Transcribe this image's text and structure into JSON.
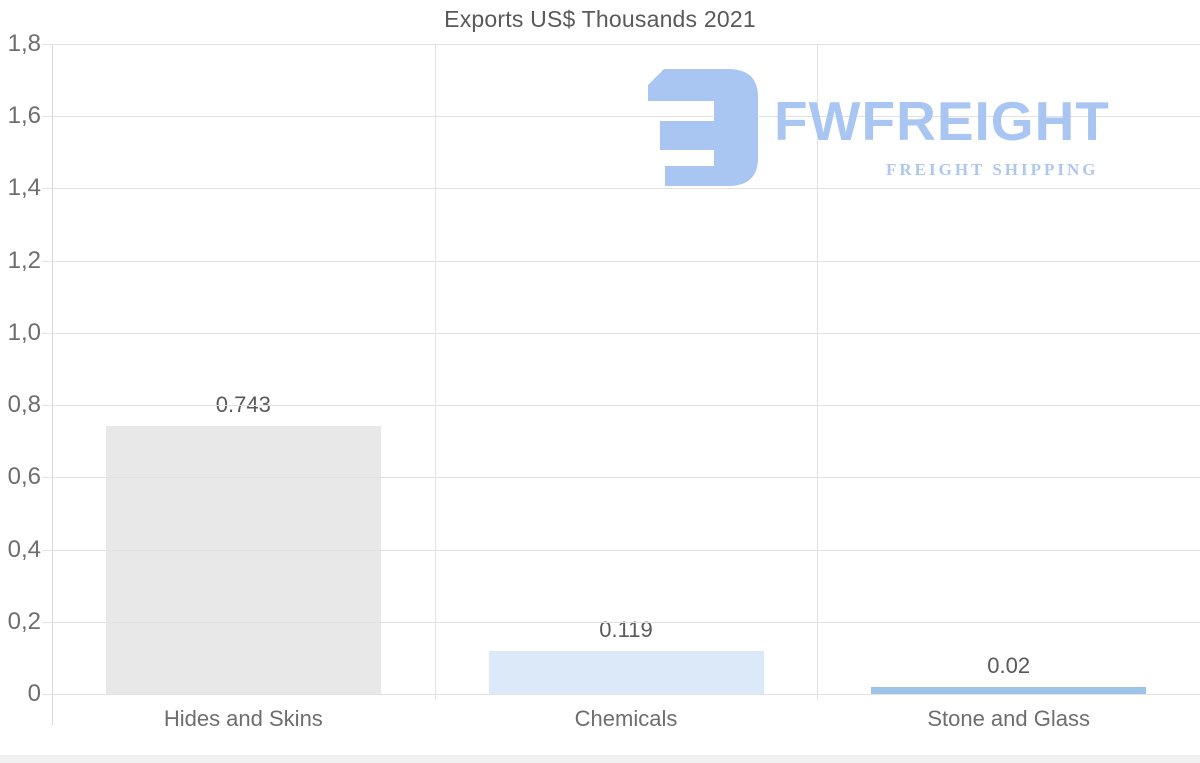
{
  "title": "Exports US$ Thousands 2021",
  "logo": {
    "name": "FWFREIGHT",
    "tagline": "FREIGHT SHIPPING",
    "color": "#a9c5f1"
  },
  "chart_data": {
    "type": "bar",
    "title": "Exports US$ Thousands 2021",
    "categories": [
      "Hides and Skins",
      "Chemicals",
      "Stone and Glass"
    ],
    "values": [
      0.743,
      0.119,
      0.02
    ],
    "value_labels": [
      "0.743",
      "0.119",
      "0.02"
    ],
    "bar_colors": [
      "#e8e8e8",
      "#dbe9f8",
      "#9dc3e7"
    ],
    "xlabel": "",
    "ylabel": "",
    "ylim": [
      0,
      1.8
    ],
    "ytick_step": 0.2,
    "ytick_labels": [
      "0",
      "0,2",
      "0,4",
      "0,6",
      "0,8",
      "1,0",
      "1,2",
      "1,4",
      "1,6",
      "1,8"
    ],
    "grid": true,
    "legend": false,
    "decimal_separator_axis": ",",
    "decimal_separator_labels": "."
  },
  "colors": {
    "grid": "#e2e2e2",
    "axis": "#d9d9d9",
    "title_text": "#595959",
    "tick_text": "#6e6e6e"
  }
}
